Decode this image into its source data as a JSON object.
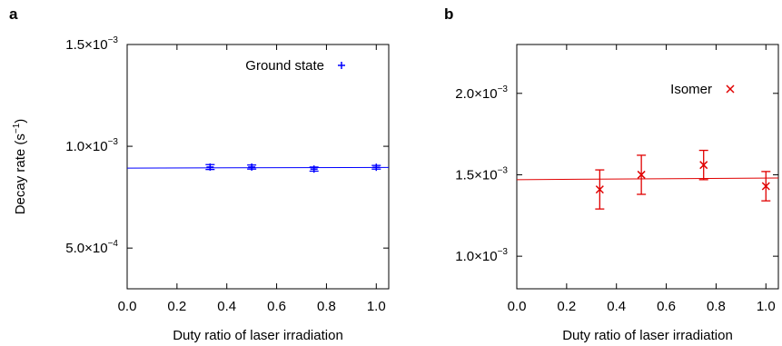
{
  "chart_data": [
    {
      "type": "scatter",
      "panel_label": "a",
      "ylabel": "Decay rate (s",
      "ylabel_sup": "−1",
      "ylabel_close": ")",
      "xlabel": "Duty ratio of laser irradiation",
      "xlim": [
        0.0,
        1.05
      ],
      "ylim": [
        0.0003,
        0.0015
      ],
      "x_ticks": [
        0.0,
        0.2,
        0.4,
        0.6,
        0.8,
        1.0
      ],
      "x_tick_labels": [
        "0.0",
        "0.2",
        "0.4",
        "0.6",
        "0.8",
        "1.0"
      ],
      "y_ticks": [
        0.0005,
        0.001,
        0.0015
      ],
      "y_tick_labels": [
        {
          "base": "5.0×10",
          "exp": "−4"
        },
        {
          "base": "1.0×10",
          "exp": "−3"
        },
        {
          "base": "1.5×10",
          "exp": "−3"
        }
      ],
      "legend_position": "top-right",
      "series": [
        {
          "name": "Ground state",
          "marker": "plus",
          "color": "#0000ff",
          "x": [
            0.333,
            0.5,
            0.75,
            1.0
          ],
          "y": [
            0.000898,
            0.000898,
            0.000888,
            0.000897
          ],
          "yerr": [
            1.2e-05,
            1e-05,
            1e-05,
            9e-06
          ]
        }
      ],
      "fit": {
        "color": "#0000ff",
        "y_at_0": 0.000893,
        "y_at_1": 0.000896
      }
    },
    {
      "type": "scatter",
      "panel_label": "b",
      "ylabel": "",
      "xlabel": "Duty ratio of laser irradiation",
      "xlim": [
        0.0,
        1.05
      ],
      "ylim": [
        0.0008,
        0.0023
      ],
      "x_ticks": [
        0.0,
        0.2,
        0.4,
        0.6,
        0.8,
        1.0
      ],
      "x_tick_labels": [
        "0.0",
        "0.2",
        "0.4",
        "0.6",
        "0.8",
        "1.0"
      ],
      "y_ticks": [
        0.001,
        0.0015,
        0.002
      ],
      "y_tick_labels": [
        {
          "base": "1.0×10",
          "exp": "−3"
        },
        {
          "base": "1.5×10",
          "exp": "−3"
        },
        {
          "base": "2.0×10",
          "exp": "−3"
        }
      ],
      "legend_position": "top-right",
      "series": [
        {
          "name": "Isomer",
          "marker": "x",
          "color": "#e00000",
          "x": [
            0.333,
            0.5,
            0.75,
            1.0
          ],
          "y": [
            0.00141,
            0.0015,
            0.00156,
            0.00143
          ],
          "yerr": [
            0.00012,
            0.00012,
            9e-05,
            9e-05
          ]
        }
      ],
      "fit": {
        "color": "#e00000",
        "y_at_0": 0.00147,
        "y_at_1": 0.00148
      }
    }
  ]
}
